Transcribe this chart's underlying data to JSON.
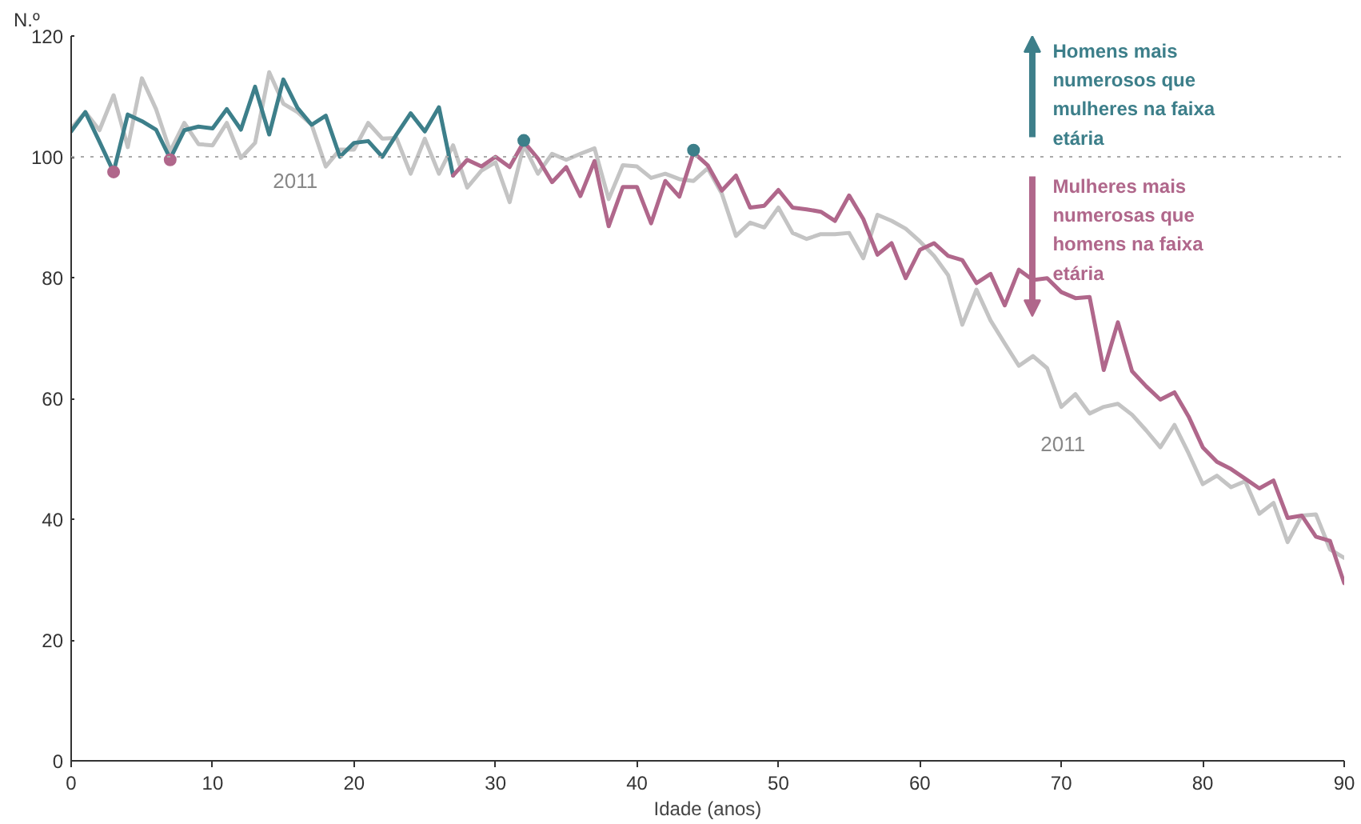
{
  "chart_data": {
    "type": "line",
    "xlabel": "Idade (anos)",
    "ylabel": "N.º",
    "xlim": [
      0,
      90
    ],
    "xticks": [
      0,
      10,
      20,
      30,
      40,
      50,
      60,
      70,
      80,
      90
    ],
    "ylim": [
      0,
      120
    ],
    "yticks": [
      0,
      20,
      40,
      60,
      80,
      100,
      120
    ],
    "grid": false,
    "marker": "none",
    "line_style": "solid",
    "series": [
      {
        "color": "#c4c4c4",
        "x": [
          0,
          1,
          2,
          3,
          4,
          5,
          6,
          7,
          8,
          9,
          10,
          11,
          12,
          13,
          14,
          15,
          16,
          17,
          18,
          19,
          20,
          21,
          22,
          23,
          24,
          25,
          26,
          27,
          28,
          29,
          30,
          31,
          32,
          33,
          34,
          35,
          36,
          37,
          38,
          39,
          40,
          41,
          42,
          43,
          44,
          45,
          46,
          47,
          48,
          49,
          50,
          51,
          52,
          53,
          54,
          55,
          56,
          57,
          58,
          59,
          60,
          61,
          62,
          63,
          64,
          65,
          66,
          67,
          68,
          69,
          70,
          71,
          72,
          73,
          74,
          75,
          76,
          77,
          78,
          79,
          80,
          81,
          82,
          83,
          84,
          85,
          86,
          87,
          88,
          89,
          90
        ],
        "values": [
          104.7,
          107.4,
          104.4,
          110.2,
          101.6,
          113,
          107.9,
          100.9,
          105.6,
          102.1,
          101.9,
          105.6,
          99.8,
          102.3,
          114,
          108.8,
          107.4,
          105.3,
          98.4,
          101.2,
          101.2,
          105.6,
          103,
          103.1,
          97.2,
          103,
          97.2,
          101.9,
          94.9,
          97.7,
          99.1,
          92.5,
          101.9,
          97.2,
          100.5,
          99.5,
          100.5,
          101.4,
          93,
          98.6,
          98.4,
          96.5,
          97.2,
          96.3,
          96,
          98.1,
          93.9,
          86.9,
          89.1,
          88.3,
          91.6,
          87.4,
          86.4,
          87.2,
          87.2,
          87.4,
          83.2,
          90.4,
          89.4,
          88.1,
          86,
          83.6,
          80.4,
          72.2,
          78,
          72.9,
          69.1,
          65.4,
          67,
          65,
          58.6,
          60.7,
          57.5,
          58.6,
          59.1,
          57.3,
          54.7,
          51.9,
          55.6,
          50.9,
          45.8,
          47.2,
          45.3,
          46.3,
          40.9,
          42.7,
          36.2,
          40.6,
          40.8,
          35,
          33.6
        ]
      },
      {
        "color": "#3d7f8a",
        "x": [
          0,
          1,
          2,
          3,
          4,
          5,
          6,
          7,
          8,
          9,
          10,
          11,
          12,
          13,
          14,
          15,
          16,
          17,
          18,
          19,
          20,
          21,
          22,
          23,
          24,
          25,
          26,
          27
        ],
        "values": [
          104.2,
          107.4,
          102.5,
          97.5,
          107,
          105.9,
          104.5,
          99.7,
          104.4,
          105,
          104.7,
          107.9,
          104.5,
          111.6,
          103.7,
          112.8,
          108.1,
          105.3,
          106.8,
          100,
          102.3,
          102.6,
          100,
          103.7,
          107.2,
          104.2,
          108.2,
          96.9
        ]
      },
      {
        "color": "#b0678b",
        "x": [
          27,
          28,
          29,
          30,
          31,
          32,
          33,
          34,
          35,
          36,
          37,
          38,
          39,
          40,
          41,
          42,
          43,
          44,
          45,
          46,
          47,
          48,
          49,
          50,
          51,
          52,
          53,
          54,
          55,
          56,
          57,
          58,
          59,
          60,
          61,
          62,
          63,
          64,
          65,
          66,
          67,
          68,
          69,
          70,
          71,
          72,
          73,
          74,
          75,
          76,
          77,
          78,
          79,
          80,
          81,
          82,
          83,
          84,
          85,
          86,
          87,
          88,
          89,
          90
        ],
        "values": [
          96.9,
          99.5,
          98.4,
          100,
          98.3,
          102.5,
          99.7,
          95.8,
          98.3,
          93.5,
          99.3,
          88.5,
          95,
          95,
          89,
          96,
          93.4,
          100.7,
          98.6,
          94.4,
          96.9,
          91.6,
          91.9,
          94.5,
          91.6,
          91.3,
          90.9,
          89.4,
          93.6,
          89.7,
          83.8,
          85.7,
          79.9,
          84.6,
          85.7,
          83.6,
          82.9,
          79.1,
          80.6,
          75.4,
          81.3,
          79.6,
          79.9,
          77.6,
          76.6,
          76.8,
          64.7,
          72.6,
          64.5,
          62,
          59.8,
          61,
          57,
          51.9,
          49.5,
          48.3,
          46.7,
          45.1,
          46.4,
          40.2,
          40.6,
          37.1,
          36.4,
          29.4
        ]
      },
      {
        "type": "scatter",
        "marker": "circle",
        "color": "#b0678b",
        "x": [
          3,
          7
        ],
        "values": [
          97.5,
          99.5
        ]
      },
      {
        "type": "scatter",
        "marker": "circle",
        "color": "#3d7f8a",
        "x": [
          32,
          44
        ],
        "values": [
          102.7,
          101.1
        ]
      }
    ],
    "ref_lines": [
      {
        "axis": "y",
        "value": 100,
        "color": "#aaaaaa",
        "line_style": "dotted"
      }
    ],
    "annotations": [
      "2011",
      "2011",
      "Homens mais numerosos que mulheres na faixa etária",
      "Mulheres mais numerosas que homens na faixa etária"
    ]
  }
}
